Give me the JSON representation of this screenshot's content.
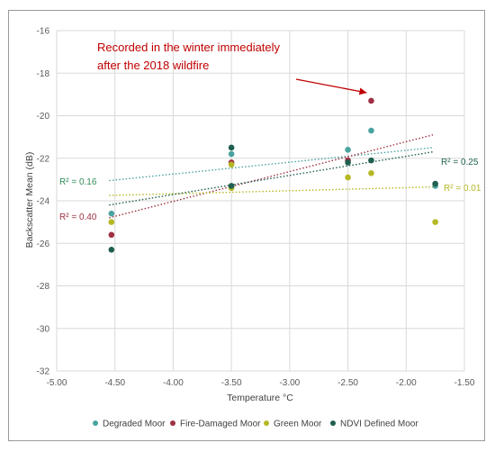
{
  "chart_data": {
    "type": "scatter",
    "xlabel": "Temperature °C",
    "ylabel": "Backscatter Mean (dB)",
    "xlim": [
      -5.0,
      -1.5
    ],
    "ylim": [
      -32,
      -16
    ],
    "x_ticks": [
      "-5.00",
      "-4.50",
      "-4.00",
      "-3.50",
      "-3.00",
      "-2.50",
      "-2.00",
      "-1.50"
    ],
    "y_ticks": [
      "-16",
      "-18",
      "-20",
      "-22",
      "-24",
      "-26",
      "-28",
      "-30",
      "-32"
    ],
    "grid": true,
    "legend_position": "bottom",
    "series": [
      {
        "name": "Degraded Moor",
        "color": "#4aa3a0",
        "points": [
          [
            -4.53,
            -24.6
          ],
          [
            -3.5,
            -21.8
          ],
          [
            -2.5,
            -21.6
          ],
          [
            -2.3,
            -20.7
          ],
          [
            -1.75,
            -23.3
          ]
        ],
        "trend": [
          [
            -4.55,
            -23.05
          ],
          [
            -1.77,
            -21.5
          ]
        ],
        "r2_label": "R² = 0.16",
        "r2_color": "#2e8b57"
      },
      {
        "name": "Fire-Damaged Moor",
        "color": "#9e3042",
        "points": [
          [
            -4.53,
            -25.6
          ],
          [
            -3.5,
            -22.2
          ],
          [
            -2.5,
            -22.1
          ],
          [
            -2.3,
            -19.3
          ]
        ],
        "trend": [
          [
            -4.55,
            -24.8
          ],
          [
            -1.77,
            -20.9
          ]
        ],
        "r2_label": "R² = 0.40",
        "r2_color": "#9e3042"
      },
      {
        "name": "Green Moor",
        "color": "#b5b825",
        "points": [
          [
            -4.53,
            -25.0
          ],
          [
            -3.5,
            -22.3
          ],
          [
            -3.5,
            -23.4
          ],
          [
            -2.5,
            -22.9
          ],
          [
            -2.3,
            -22.7
          ],
          [
            -1.75,
            -25.0
          ]
        ],
        "trend": [
          [
            -4.55,
            -23.75
          ],
          [
            -1.77,
            -23.35
          ]
        ],
        "r2_label": "R² = 0.01",
        "r2_color": "#b5b825"
      },
      {
        "name": "NDVI Defined Moor",
        "color": "#1f5f4f",
        "points": [
          [
            -4.53,
            -26.3
          ],
          [
            -3.5,
            -21.5
          ],
          [
            -3.5,
            -23.3
          ],
          [
            -2.5,
            -22.2
          ],
          [
            -2.3,
            -22.1
          ],
          [
            -1.75,
            -23.2
          ]
        ],
        "trend": [
          [
            -4.55,
            -24.2
          ],
          [
            -1.77,
            -21.7
          ]
        ],
        "r2_label": "R² = 0.25",
        "r2_color": "#1f5f4f"
      }
    ],
    "annotation": {
      "line1": "Recorded in the winter immediately",
      "line2": "after the 2018 wildfire",
      "target": [
        -2.3,
        -19.3
      ],
      "color": "#c00000"
    }
  }
}
